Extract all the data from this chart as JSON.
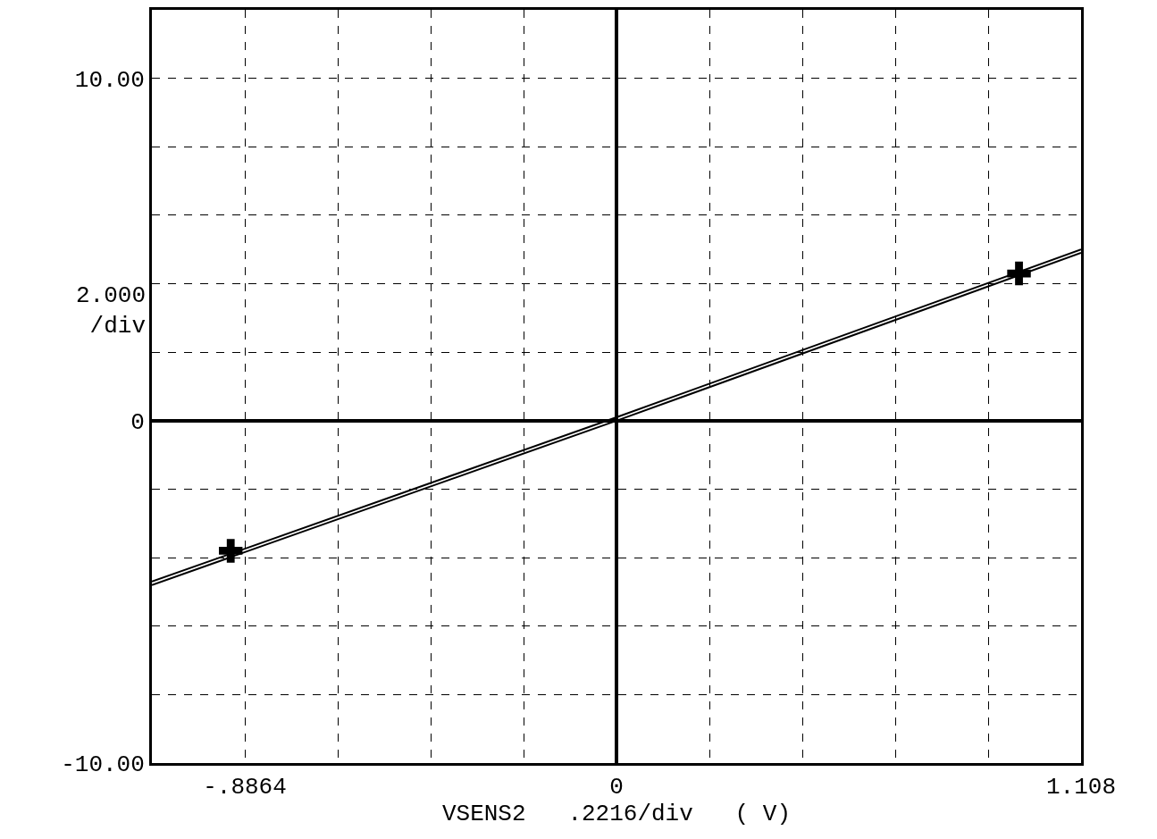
{
  "chart_data": {
    "type": "line",
    "xlabel": "VSENS2   .2216/div   ( V)",
    "ylabel": "2.000 /div",
    "x": [
      -1.108,
      0,
      1.108
    ],
    "series": [
      {
        "color": "#000000",
        "values": [
          -4.8,
          0,
          4.9
        ]
      },
      {
        "color": "#000000",
        "values": [
          -4.7,
          0.1,
          5.0
        ]
      },
      {
        "type": "scatter",
        "color": "#000000",
        "marker": "cross",
        "x": [
          -0.92,
          0.96
        ],
        "values": [
          -3.8,
          4.3
        ]
      }
    ],
    "xlim": [
      -1.108,
      1.108
    ],
    "xticks": [
      {
        "value": -0.8864,
        "label": "-.8864"
      },
      {
        "value": -0.6648,
        "label": null
      },
      {
        "value": -0.4432,
        "label": null
      },
      {
        "value": -0.2216,
        "label": null
      },
      0,
      {
        "value": 0.2216,
        "label": null
      },
      {
        "value": 0.4432,
        "label": null
      },
      {
        "value": 0.6648,
        "label": null
      },
      {
        "value": 0.8864,
        "label": null
      },
      {
        "value": 1.108,
        "label": "1.108"
      }
    ],
    "ylim": [
      -10,
      12
    ],
    "yticks": [
      {
        "value": -10,
        "label": "-10.00"
      },
      {
        "value": -8,
        "label": null
      },
      {
        "value": -6,
        "label": null
      },
      {
        "value": -4,
        "label": null
      },
      {
        "value": -2,
        "label": null
      },
      0,
      {
        "value": 2,
        "label": null
      },
      {
        "value": 4,
        "label": null
      },
      {
        "value": 6,
        "label": null
      },
      {
        "value": 8,
        "label": null
      },
      {
        "value": 10,
        "label": "10.00"
      }
    ],
    "grid": true,
    "line_style": "solid",
    "marker": "none"
  }
}
